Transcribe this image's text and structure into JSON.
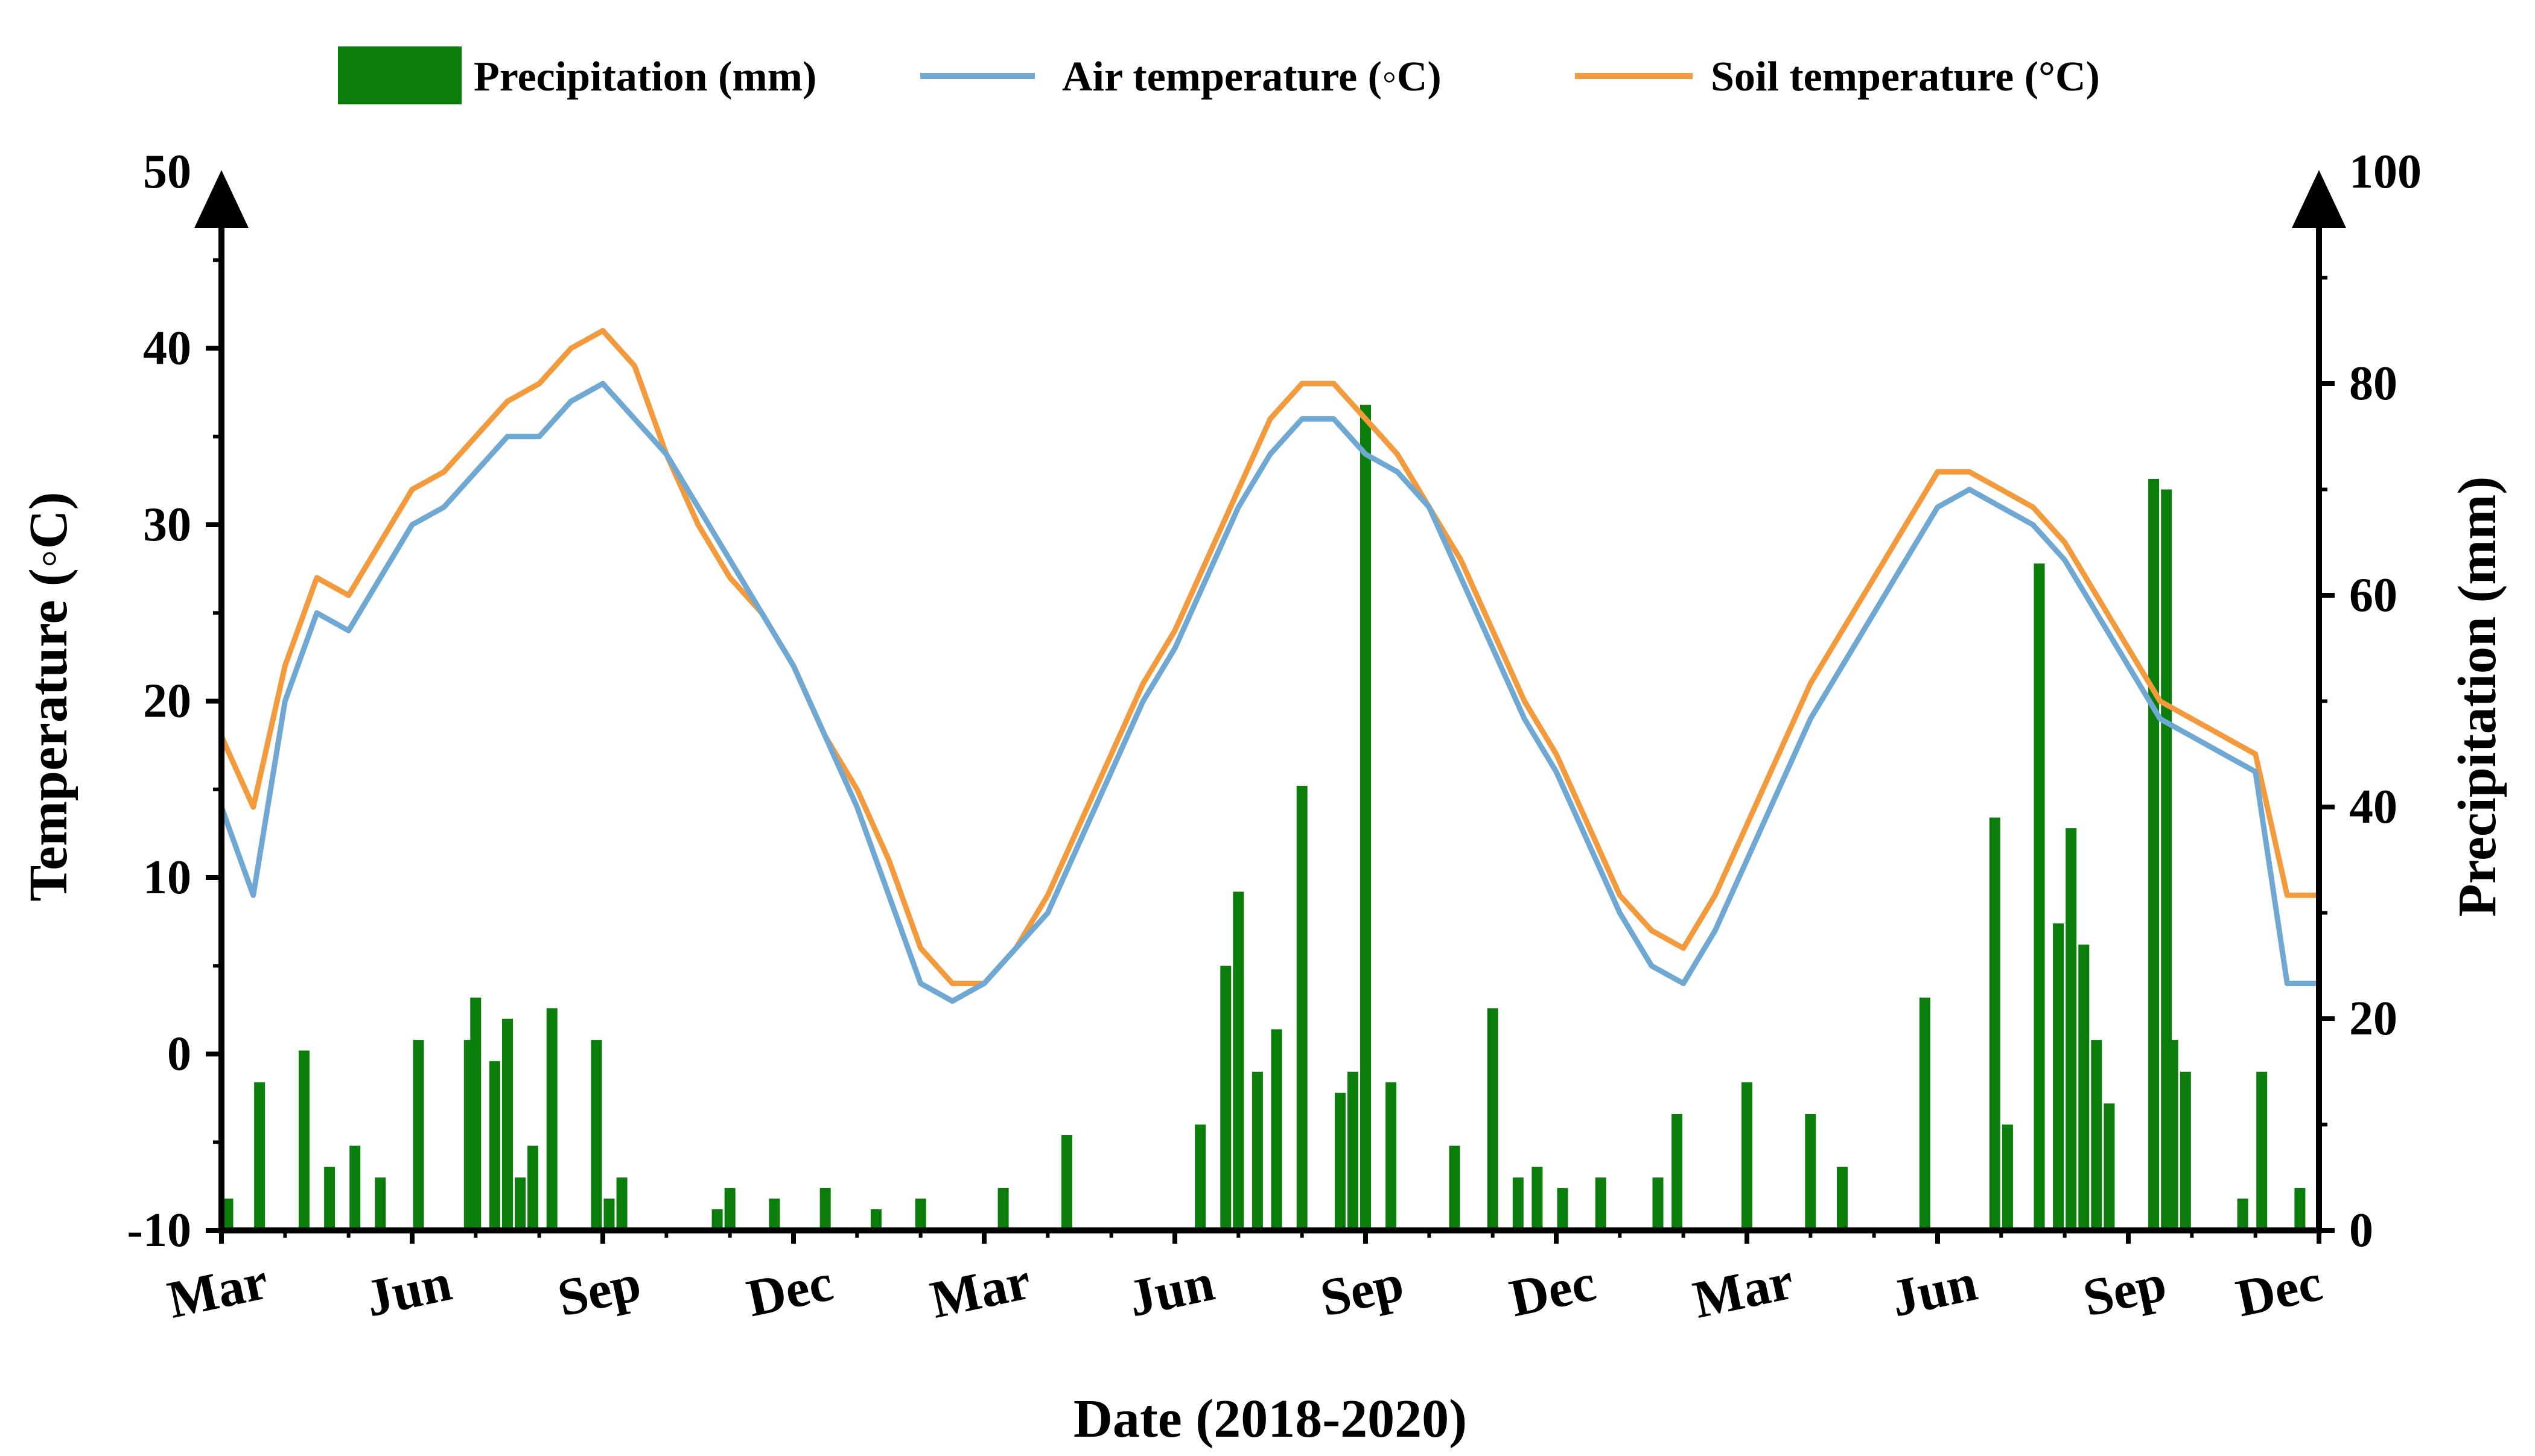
{
  "chart_data": {
    "type": "bar+line",
    "title": "",
    "xlabel": "Date (2018-2020)",
    "ylabel_left": "Temperature  (◦C)",
    "ylabel_right": "Precipitation  (mm)",
    "ylim_left": [
      -10,
      50
    ],
    "ylim_right": [
      0,
      100
    ],
    "yticks_left": [
      "-10",
      "0",
      "10",
      "20",
      "30",
      "40",
      "50"
    ],
    "yticks_right": [
      "0",
      "20",
      "40",
      "60",
      "80",
      "100"
    ],
    "x_ticks": [
      "Mar",
      "Jun",
      "Sep",
      "Dec",
      "Mar",
      "Jun",
      "Sep",
      "Dec",
      "Mar",
      "Jun",
      "Sep",
      "Dec"
    ],
    "x_unit": "months since 2018-03-01",
    "xlim": [
      0,
      33
    ],
    "legend": {
      "placement": "top-center",
      "entries": [
        {
          "label": "Precipitation (mm)",
          "kind": "bar",
          "color": "#0a7d0a"
        },
        {
          "label": "Air temperature  (◦C)",
          "kind": "line",
          "color": "#6fa8d3"
        },
        {
          "label": "Soil temperature (°C)",
          "kind": "line",
          "color": "#f39a3c"
        }
      ]
    },
    "series": [
      {
        "name": "Soil temperature (°C)",
        "type": "line",
        "color": "#f39a3c",
        "x": [
          0,
          0.5,
          1,
          1.5,
          2,
          2.5,
          3,
          3.5,
          4,
          4.5,
          5,
          5.5,
          6,
          6.5,
          7,
          7.5,
          8,
          8.5,
          9,
          9.5,
          10,
          10.5,
          11,
          11.5,
          12,
          12.5,
          13,
          13.5,
          14,
          14.5,
          15,
          15.5,
          16,
          16.5,
          17,
          17.5,
          18,
          18.5,
          19,
          19.5,
          20,
          20.5,
          21,
          21.5,
          22,
          22.5,
          23,
          23.5,
          24,
          24.5,
          25,
          25.5,
          26,
          26.5,
          27,
          27.5,
          28,
          28.5,
          29,
          29.5,
          30,
          30.5,
          31,
          31.5,
          32,
          32.5,
          33
        ],
        "values": [
          18,
          14,
          22,
          27,
          26,
          29,
          32,
          33,
          35,
          37,
          38,
          40,
          41,
          39,
          34,
          30,
          27,
          25,
          22,
          18,
          15,
          11,
          6,
          4,
          4,
          6,
          9,
          13,
          17,
          21,
          24,
          28,
          32,
          36,
          38,
          38,
          36,
          34,
          31,
          28,
          24,
          20,
          17,
          13,
          9,
          7,
          6,
          9,
          13,
          17,
          21,
          24,
          27,
          30,
          33,
          33,
          32,
          31,
          29,
          26,
          23,
          20,
          19,
          18,
          17,
          9,
          9
        ]
      },
      {
        "name": "Air temperature  (◦C)",
        "type": "line",
        "color": "#6fa8d3",
        "x": [
          0,
          0.5,
          1,
          1.5,
          2,
          2.5,
          3,
          3.5,
          4,
          4.5,
          5,
          5.5,
          6,
          6.5,
          7,
          7.5,
          8,
          8.5,
          9,
          9.5,
          10,
          10.5,
          11,
          11.5,
          12,
          12.5,
          13,
          13.5,
          14,
          14.5,
          15,
          15.5,
          16,
          16.5,
          17,
          17.5,
          18,
          18.5,
          19,
          19.5,
          20,
          20.5,
          21,
          21.5,
          22,
          22.5,
          23,
          23.5,
          24,
          24.5,
          25,
          25.5,
          26,
          26.5,
          27,
          27.5,
          28,
          28.5,
          29,
          29.5,
          30,
          30.5,
          31,
          31.5,
          32,
          32.5,
          33
        ],
        "values": [
          14,
          9,
          20,
          25,
          24,
          27,
          30,
          31,
          33,
          35,
          35,
          37,
          38,
          36,
          34,
          31,
          28,
          25,
          22,
          18,
          14,
          9,
          4,
          3,
          4,
          6,
          8,
          12,
          16,
          20,
          23,
          27,
          31,
          34,
          36,
          36,
          34,
          33,
          31,
          27,
          23,
          19,
          16,
          12,
          8,
          5,
          4,
          7,
          11,
          15,
          19,
          22,
          25,
          28,
          31,
          32,
          31,
          30,
          28,
          25,
          22,
          19,
          18,
          17,
          16,
          4,
          4
        ]
      },
      {
        "name": "Precipitation (mm)",
        "type": "bar",
        "color": "#0a7d0a",
        "axis": "right",
        "x": [
          0.1,
          0.6,
          1.3,
          1.7,
          2.1,
          2.5,
          3.1,
          3.9,
          4.0,
          4.3,
          4.5,
          4.7,
          4.9,
          5.2,
          5.9,
          6.1,
          6.3,
          7.8,
          8.0,
          8.7,
          9.5,
          10.3,
          11.0,
          12.3,
          13.3,
          15.4,
          15.8,
          16.0,
          16.3,
          16.6,
          17.0,
          17.6,
          17.8,
          18.0,
          18.4,
          19.4,
          20.0,
          20.4,
          20.7,
          21.1,
          21.7,
          22.6,
          22.9,
          24.0,
          25.0,
          25.5,
          26.8,
          27.9,
          28.1,
          28.6,
          28.9,
          29.1,
          29.3,
          29.5,
          29.7,
          30.4,
          30.6,
          30.7,
          30.9,
          31.8,
          32.1,
          32.7
        ],
        "values": [
          3,
          14,
          17,
          6,
          8,
          5,
          18,
          18,
          22,
          16,
          20,
          5,
          8,
          21,
          18,
          3,
          5,
          2,
          4,
          3,
          4,
          2,
          3,
          4,
          9,
          10,
          25,
          32,
          15,
          19,
          42,
          13,
          15,
          78,
          14,
          8,
          21,
          5,
          6,
          4,
          5,
          5,
          11,
          14,
          11,
          6,
          22,
          39,
          10,
          63,
          29,
          38,
          27,
          18,
          12,
          71,
          70,
          18,
          15,
          3,
          15,
          4
        ]
      }
    ]
  }
}
